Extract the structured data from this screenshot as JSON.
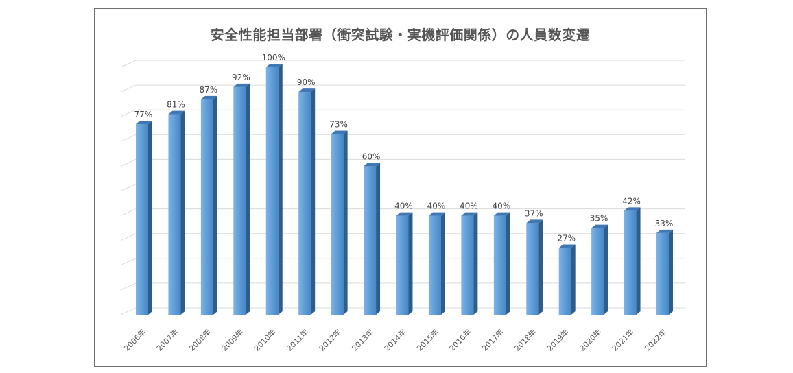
{
  "chart_data": {
    "type": "bar",
    "title": "安全性能担当部署（衝突試験・実機評価関係）の人員数変遷",
    "categories": [
      "2006年",
      "2007年",
      "2008年",
      "2009年",
      "2010年",
      "2011年",
      "2012年",
      "2013年",
      "2014年",
      "2015年",
      "2016年",
      "2017年",
      "2018年",
      "2019年",
      "2020年",
      "2021年",
      "2022年"
    ],
    "values": [
      77,
      81,
      87,
      92,
      100,
      90,
      73,
      60,
      40,
      40,
      40,
      40,
      37,
      27,
      35,
      42,
      33
    ],
    "value_labels": [
      "77%",
      "81%",
      "87%",
      "92%",
      "100%",
      "90%",
      "73%",
      "60%",
      "40%",
      "40%",
      "40%",
      "40%",
      "37%",
      "27%",
      "35%",
      "42%",
      "33%"
    ],
    "ylim": [
      0,
      100
    ],
    "grid": true,
    "bar_color": "#5b9bd5",
    "bar_side_color": "#2e5d8c",
    "bar_top_color": "#3f78b5",
    "gridline_color": "#d9d9d9",
    "title_color": "#555555"
  }
}
